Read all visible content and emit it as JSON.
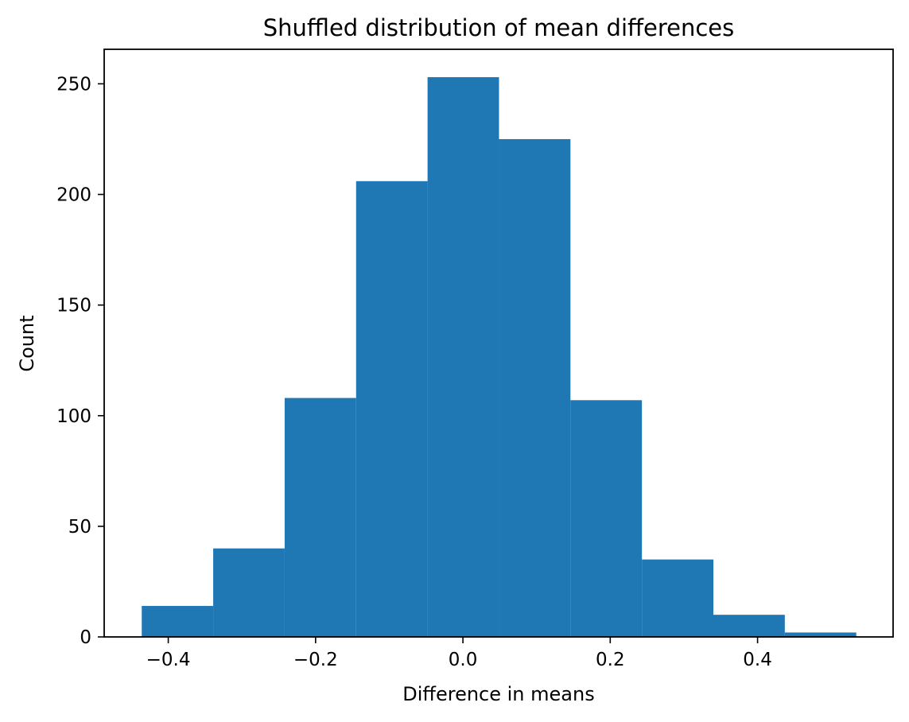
{
  "chart_data": {
    "type": "bar",
    "title": "Shuffled distribution of mean differences",
    "xlabel": "Difference in means",
    "ylabel": "Count",
    "xlim": [
      -0.487,
      0.584
    ],
    "ylim": [
      0,
      265.6
    ],
    "grid": false,
    "color": "#1f77b4",
    "bins": [
      {
        "x0": -0.436,
        "x1": -0.339,
        "count": 14
      },
      {
        "x0": -0.339,
        "x1": -0.242,
        "count": 40
      },
      {
        "x0": -0.242,
        "x1": -0.145,
        "count": 108
      },
      {
        "x0": -0.145,
        "x1": -0.048,
        "count": 206
      },
      {
        "x0": -0.048,
        "x1": 0.049,
        "count": 253
      },
      {
        "x0": 0.049,
        "x1": 0.146,
        "count": 225
      },
      {
        "x0": 0.146,
        "x1": 0.243,
        "count": 107
      },
      {
        "x0": 0.243,
        "x1": 0.34,
        "count": 35
      },
      {
        "x0": 0.34,
        "x1": 0.437,
        "count": 10
      },
      {
        "x0": 0.437,
        "x1": 0.534,
        "count": 2
      }
    ],
    "x_ticks": [
      {
        "value": -0.4,
        "label": "−0.4"
      },
      {
        "value": -0.2,
        "label": "−0.2"
      },
      {
        "value": 0.0,
        "label": "0.0"
      },
      {
        "value": 0.2,
        "label": "0.2"
      },
      {
        "value": 0.4,
        "label": "0.4"
      }
    ],
    "y_ticks": [
      {
        "value": 0,
        "label": "0"
      },
      {
        "value": 50,
        "label": "50"
      },
      {
        "value": 100,
        "label": "100"
      },
      {
        "value": 150,
        "label": "150"
      },
      {
        "value": 200,
        "label": "200"
      },
      {
        "value": 250,
        "label": "250"
      }
    ]
  }
}
